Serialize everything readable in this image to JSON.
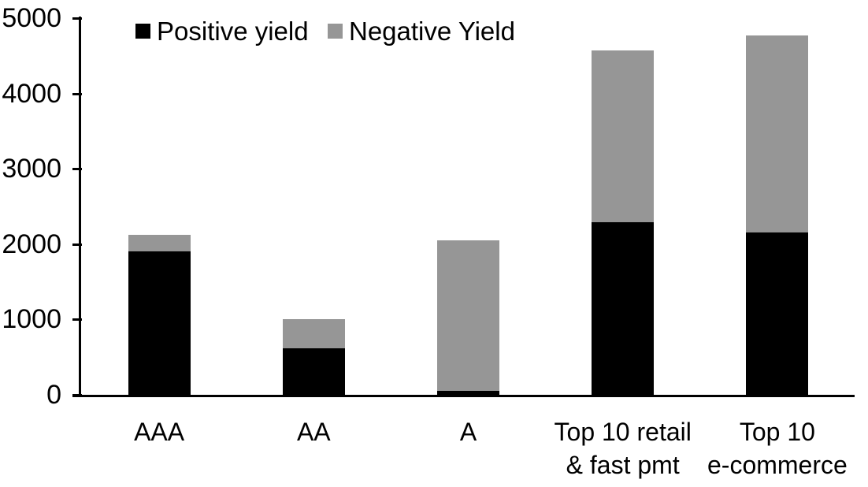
{
  "chart_data": {
    "type": "bar",
    "stacked": true,
    "categories": [
      "AAA",
      "AA",
      "A",
      "Top 10 retail & fast pmt",
      "Top 10 e-commerce"
    ],
    "category_lines": [
      [
        "AAA"
      ],
      [
        "AA"
      ],
      [
        "A"
      ],
      [
        "Top 10 retail",
        "& fast pmt"
      ],
      [
        "Top 10",
        "e-commerce"
      ]
    ],
    "series": [
      {
        "name": "Positive yield",
        "color": "#000000",
        "values": [
          1900,
          620,
          50,
          2290,
          2150
        ]
      },
      {
        "name": "Negative Yield",
        "color": "#969696",
        "values": [
          220,
          385,
          2000,
          2285,
          2620
        ]
      }
    ],
    "title": "",
    "xlabel": "",
    "ylabel": "",
    "ylim": [
      0,
      5000
    ],
    "yticks": [
      0,
      1000,
      2000,
      3000,
      4000,
      5000
    ],
    "grid": "off",
    "legend_position": "top-inside",
    "axis_color": "#000000",
    "background_color": "#ffffff"
  }
}
